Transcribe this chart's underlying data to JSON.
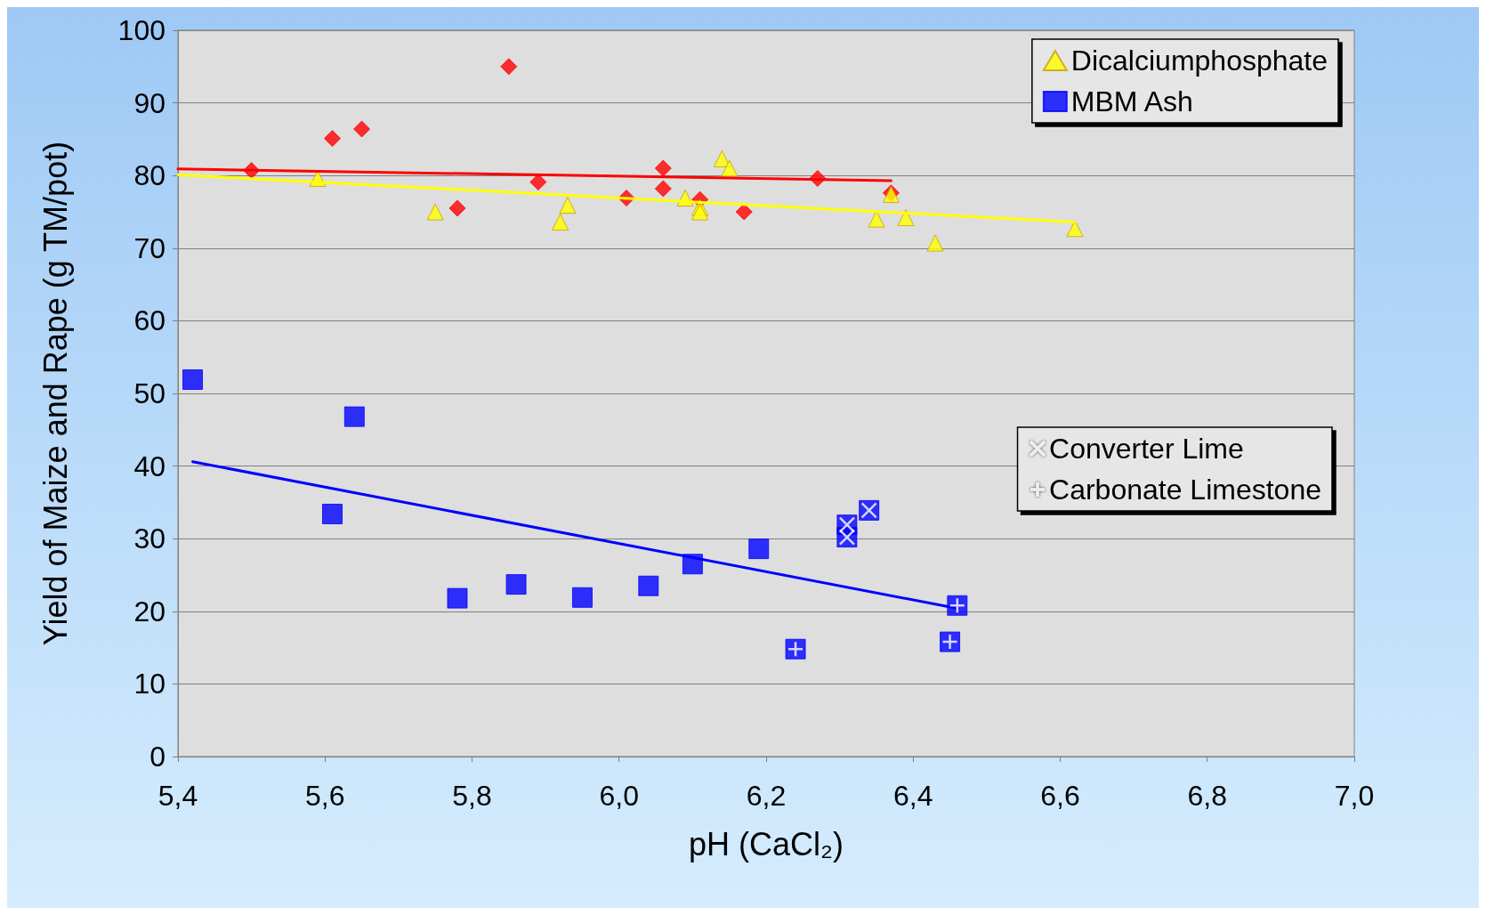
{
  "chart_data": {
    "type": "scatter",
    "xlabel": "pH (CaCl₂)",
    "ylabel": "Yield of Maize and Rape (g TM/pot)",
    "xlim": [
      5.4,
      7.0
    ],
    "xticks": [
      {
        "value": 5.4,
        "label": "5,4"
      },
      {
        "value": 5.6,
        "label": "5,6"
      },
      {
        "value": 5.8,
        "label": "5,8"
      },
      {
        "value": 6.0,
        "label": "6,0"
      },
      {
        "value": 6.2,
        "label": "6,2"
      },
      {
        "value": 6.4,
        "label": "6,4"
      },
      {
        "value": 6.6,
        "label": "6,6"
      },
      {
        "value": 6.8,
        "label": "6,8"
      },
      {
        "value": 7.0,
        "label": "7,0"
      }
    ],
    "ylim": [
      0,
      100
    ],
    "yticks": [
      0,
      10,
      20,
      30,
      40,
      50,
      60,
      70,
      80,
      90,
      100
    ],
    "grid": "y",
    "legend": "top right",
    "series": [
      {
        "color": "#ff0000",
        "marker": "diamond",
        "x": [
          5.5,
          5.61,
          5.65,
          5.85,
          5.78,
          5.89,
          6.01,
          6.06,
          6.06,
          6.11,
          6.17,
          6.27,
          6.37
        ],
        "values": [
          80.7,
          85.1,
          86.4,
          95.0,
          75.5,
          79.1,
          76.9,
          81.0,
          78.2,
          76.7,
          75.0,
          79.6,
          77.6
        ]
      },
      {
        "name": "Dicalciumphosphate",
        "color": "#ffff00",
        "marker": "triangle",
        "x": [
          5.59,
          5.75,
          5.92,
          5.93,
          6.09,
          6.11,
          6.11,
          6.14,
          6.15,
          6.35,
          6.37,
          6.39,
          6.43,
          6.62
        ],
        "values": [
          79.6,
          75.0,
          73.6,
          75.9,
          76.9,
          75.6,
          75.0,
          82.3,
          81.0,
          74.0,
          77.4,
          74.2,
          70.7,
          72.7
        ]
      },
      {
        "name": "MBM Ash",
        "color": "#0000ff",
        "marker": "square",
        "x": [
          5.42,
          5.64,
          5.61,
          5.78,
          5.86,
          5.95,
          6.04,
          6.1,
          6.19,
          6.24,
          6.31,
          6.31,
          6.34,
          6.45,
          6.46
        ],
        "values": [
          51.9,
          46.8,
          33.4,
          21.8,
          23.7,
          21.9,
          23.5,
          26.5,
          28.6,
          14.8,
          30.2,
          31.9,
          33.9,
          15.8,
          20.8
        ]
      },
      {
        "name": "Converter Lime",
        "color": "#ffffff",
        "marker": "cross",
        "x": [
          6.31,
          6.31,
          6.34
        ],
        "values": [
          30.2,
          31.9,
          33.9
        ]
      },
      {
        "name": "Carbonate Limestone",
        "color": "#ffffff",
        "marker": "plus",
        "x": [
          6.24,
          6.45,
          6.46
        ],
        "values": [
          14.8,
          15.8,
          20.8
        ]
      },
      {
        "type": "line",
        "color": "#ff0000",
        "x": [
          5.4,
          6.37
        ],
        "values": [
          80.9,
          79.3
        ]
      },
      {
        "type": "line",
        "color": "#ffff00",
        "x": [
          5.4,
          6.62
        ],
        "values": [
          80.1,
          73.6
        ]
      },
      {
        "type": "line",
        "color": "#0000ff",
        "x": [
          5.42,
          6.46
        ],
        "values": [
          40.6,
          20.4
        ]
      }
    ]
  }
}
